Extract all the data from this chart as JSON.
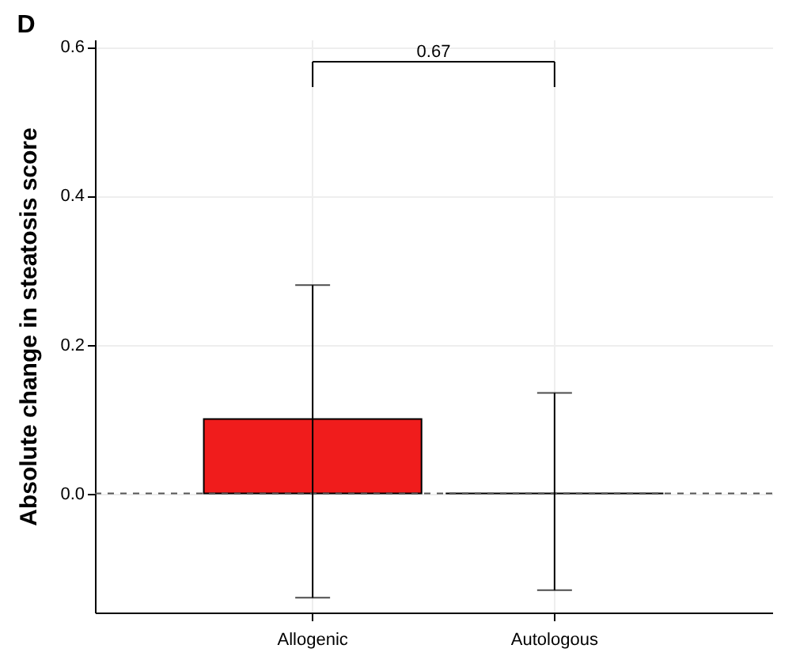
{
  "chart_data": {
    "type": "bar",
    "title": "D",
    "ylabel": "Absolute change in steatosis score",
    "categories": [
      "Allogenic",
      "Autologous"
    ],
    "values": [
      0.1,
      0
    ],
    "colors": [
      "#f01c1c",
      "#000000"
    ],
    "errors": [
      [
        -0.14,
        0.28
      ],
      [
        -0.13,
        0.135
      ]
    ],
    "ylim": [
      -0.16,
      0.61
    ],
    "yticks": [
      {
        "value": 0,
        "label": "0.0"
      },
      {
        "value": 0.2,
        "label": "0.2"
      },
      {
        "value": 0.4,
        "label": "0.4"
      },
      {
        "value": 0.6,
        "label": "0.6"
      }
    ],
    "ref_lines": [
      {
        "axis": "y",
        "value": 0,
        "line_style": "dashed"
      }
    ],
    "annotations": [
      "0.67"
    ],
    "grid": true
  }
}
